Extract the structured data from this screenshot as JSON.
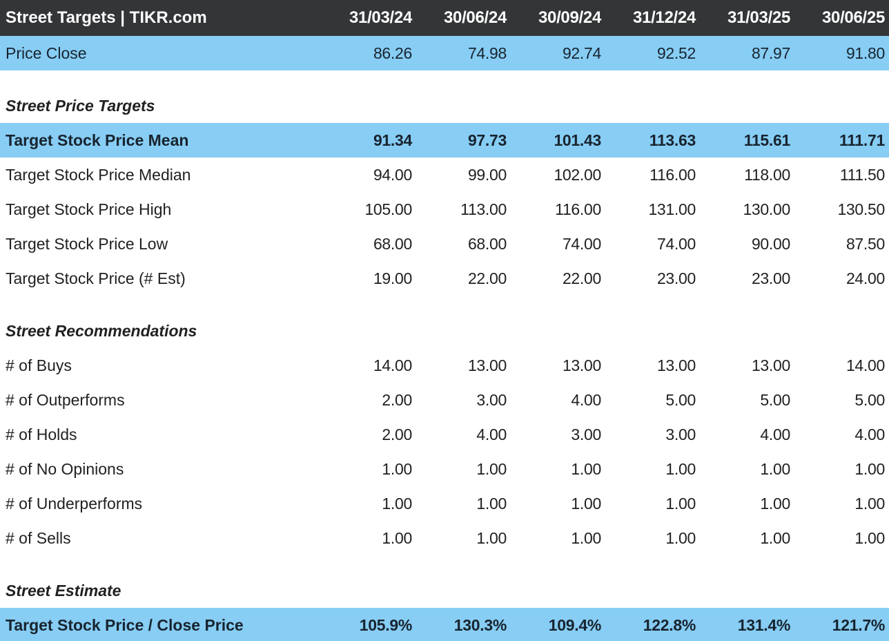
{
  "colors": {
    "header_bg": "#333537",
    "header_text": "#ffffff",
    "highlight_bg": "#87cdf4",
    "highlight_text": "#18242f",
    "text": "#212121"
  },
  "chart_data": {
    "type": "table",
    "title": "Street Targets | TIKR.com",
    "columns": [
      "31/03/24",
      "30/06/24",
      "30/09/24",
      "31/12/24",
      "31/03/25",
      "30/06/25"
    ],
    "rows": [
      {
        "kind": "data",
        "label": "Price Close",
        "values": [
          "86.26",
          "74.98",
          "92.74",
          "92.52",
          "87.97",
          "91.80"
        ],
        "highlight": true,
        "bold": false
      },
      {
        "kind": "gap"
      },
      {
        "kind": "section",
        "label": "Street Price Targets"
      },
      {
        "kind": "data",
        "label": "Target Stock Price Mean",
        "values": [
          "91.34",
          "97.73",
          "101.43",
          "113.63",
          "115.61",
          "111.71"
        ],
        "highlight": true,
        "bold": true
      },
      {
        "kind": "data",
        "label": "Target Stock Price Median",
        "values": [
          "94.00",
          "99.00",
          "102.00",
          "116.00",
          "118.00",
          "111.50"
        ],
        "highlight": false,
        "bold": false
      },
      {
        "kind": "data",
        "label": "Target Stock Price High",
        "values": [
          "105.00",
          "113.00",
          "116.00",
          "131.00",
          "130.00",
          "130.50"
        ],
        "highlight": false,
        "bold": false
      },
      {
        "kind": "data",
        "label": "Target Stock Price Low",
        "values": [
          "68.00",
          "68.00",
          "74.00",
          "74.00",
          "90.00",
          "87.50"
        ],
        "highlight": false,
        "bold": false
      },
      {
        "kind": "data",
        "label": "Target Stock Price (# Est)",
        "values": [
          "19.00",
          "22.00",
          "22.00",
          "23.00",
          "23.00",
          "24.00"
        ],
        "highlight": false,
        "bold": false
      },
      {
        "kind": "gap"
      },
      {
        "kind": "section",
        "label": "Street Recommendations"
      },
      {
        "kind": "data",
        "label": "# of Buys",
        "values": [
          "14.00",
          "13.00",
          "13.00",
          "13.00",
          "13.00",
          "14.00"
        ],
        "highlight": false,
        "bold": false
      },
      {
        "kind": "data",
        "label": "# of Outperforms",
        "values": [
          "2.00",
          "3.00",
          "4.00",
          "5.00",
          "5.00",
          "5.00"
        ],
        "highlight": false,
        "bold": false
      },
      {
        "kind": "data",
        "label": "# of Holds",
        "values": [
          "2.00",
          "4.00",
          "3.00",
          "3.00",
          "4.00",
          "4.00"
        ],
        "highlight": false,
        "bold": false
      },
      {
        "kind": "data",
        "label": "# of No Opinions",
        "values": [
          "1.00",
          "1.00",
          "1.00",
          "1.00",
          "1.00",
          "1.00"
        ],
        "highlight": false,
        "bold": false
      },
      {
        "kind": "data",
        "label": "# of Underperforms",
        "values": [
          "1.00",
          "1.00",
          "1.00",
          "1.00",
          "1.00",
          "1.00"
        ],
        "highlight": false,
        "bold": false
      },
      {
        "kind": "data",
        "label": "# of Sells",
        "values": [
          "1.00",
          "1.00",
          "1.00",
          "1.00",
          "1.00",
          "1.00"
        ],
        "highlight": false,
        "bold": false
      },
      {
        "kind": "gap"
      },
      {
        "kind": "section",
        "label": "Street Estimate"
      },
      {
        "kind": "data",
        "label": "Target Stock Price / Close Price",
        "values": [
          "105.9%",
          "130.3%",
          "109.4%",
          "122.8%",
          "131.4%",
          "121.7%"
        ],
        "highlight": true,
        "bold": true
      }
    ]
  }
}
